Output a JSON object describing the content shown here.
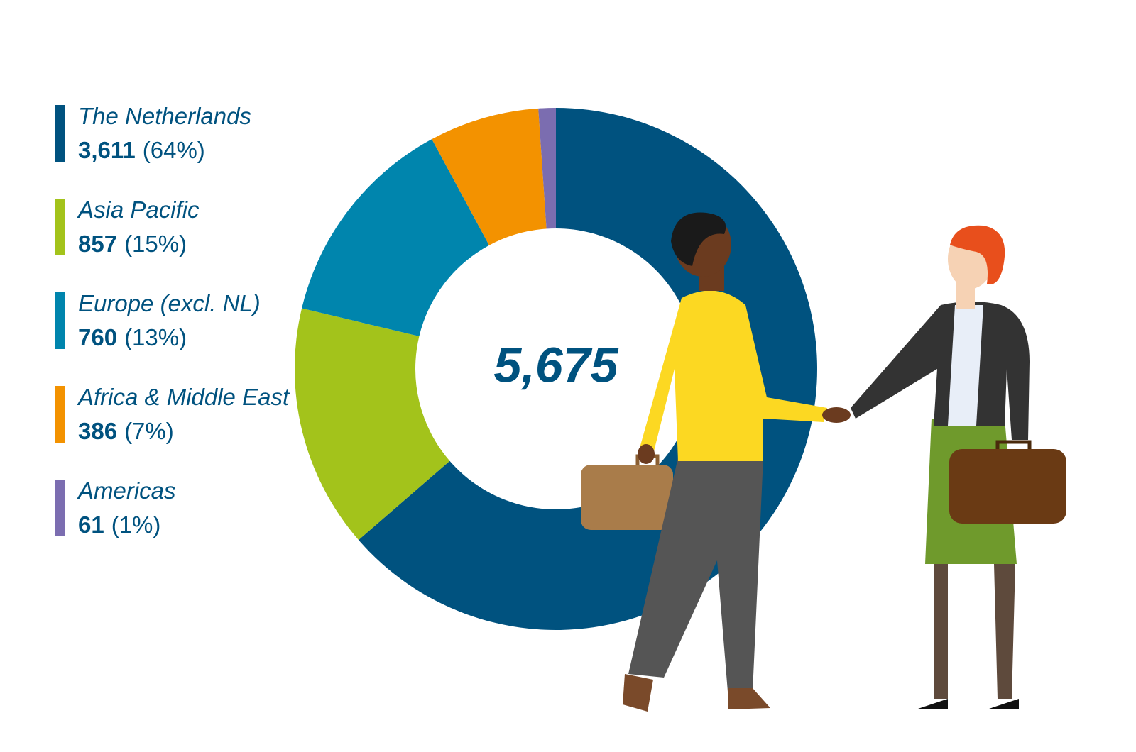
{
  "chart_data": {
    "type": "donut",
    "categories": [
      "The Netherlands",
      "Asia Pacific",
      "Europe (excl. NL)",
      "Africa & Middle East",
      "Americas"
    ],
    "values": [
      3611,
      857,
      760,
      386,
      61
    ],
    "value_labels": [
      "3,611",
      "857",
      "760",
      "386",
      "61"
    ],
    "shares": [
      64,
      15,
      13,
      7,
      1
    ],
    "share_labels": [
      "(64%)",
      "(15%)",
      "(13%)",
      "(7%)",
      "(1%)"
    ],
    "colors": [
      "#00527f",
      "#a3c31b",
      "#0085ad",
      "#f39200",
      "#7b6db0"
    ],
    "total": {
      "value": 5675,
      "label": "5,675"
    }
  }
}
